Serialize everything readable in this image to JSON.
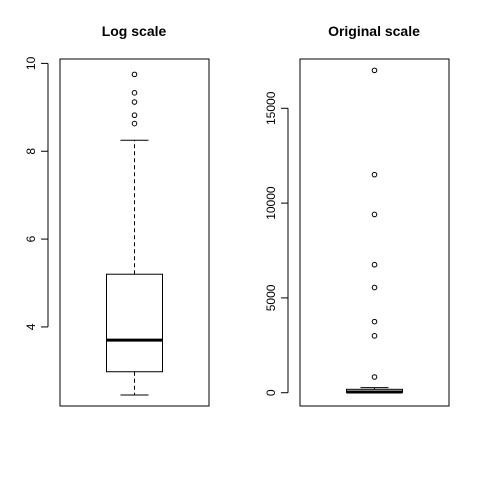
{
  "chart_data": [
    {
      "type": "boxplot",
      "title": "Log scale",
      "xlabel": "",
      "ylabel": "",
      "ylim": [
        2.2,
        10.1
      ],
      "yticks": [
        4,
        6,
        8,
        10
      ],
      "grid": false,
      "box": {
        "lower_whisker": 2.45,
        "q1": 2.98,
        "median": 3.7,
        "q3": 5.2,
        "upper_whisker": 8.25,
        "outliers": [
          8.63,
          8.82,
          9.12,
          9.33,
          9.75
        ]
      }
    },
    {
      "type": "boxplot",
      "title": "Original scale",
      "xlabel": "",
      "ylabel": "",
      "ylim": [
        -700,
        17600
      ],
      "yticks": [
        0,
        5000,
        10000,
        15000
      ],
      "grid": false,
      "box": {
        "lower_whisker": 12,
        "q1": 20,
        "median": 40,
        "q3": 180,
        "upper_whisker": 270,
        "outliers": [
          830,
          3000,
          3750,
          5550,
          6750,
          9400,
          11500,
          17000
        ]
      }
    }
  ]
}
